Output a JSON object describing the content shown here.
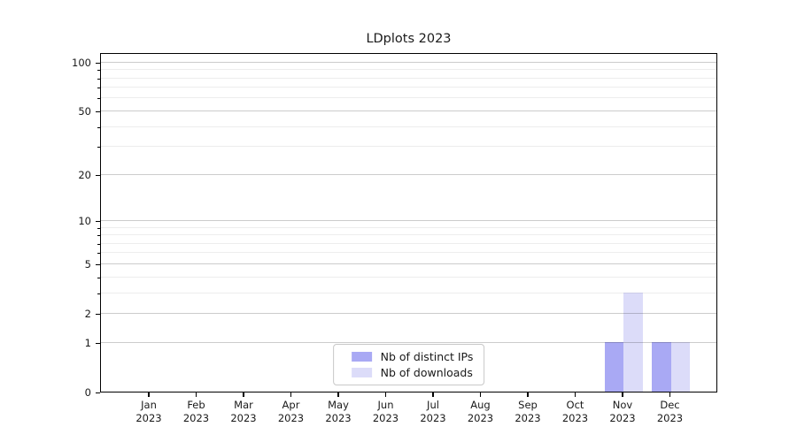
{
  "chart_data": {
    "type": "bar",
    "title": "LDplots 2023",
    "categories": [
      "Jan",
      "Feb",
      "Mar",
      "Apr",
      "May",
      "Jun",
      "Jul",
      "Aug",
      "Sep",
      "Oct",
      "Nov",
      "Dec"
    ],
    "x_tick_year": "2023",
    "series": [
      {
        "name": "Nb of distinct IPs",
        "color": "#a9a9f4",
        "values": [
          0,
          0,
          0,
          0,
          0,
          0,
          0,
          0,
          0,
          0,
          1,
          1
        ]
      },
      {
        "name": "Nb of downloads",
        "color": "#dcdcf9",
        "values": [
          0,
          0,
          0,
          0,
          0,
          0,
          0,
          0,
          0,
          0,
          3,
          1
        ]
      }
    ],
    "xlabel": "",
    "ylabel": "",
    "y_axis": {
      "ticks": [
        0,
        1,
        2,
        5,
        10,
        20,
        50,
        100
      ],
      "minor_ticks": [
        3,
        4,
        6,
        7,
        8,
        9,
        30,
        40,
        60,
        70,
        80,
        90
      ],
      "scale": "log10(1+x)",
      "ylim": [
        0,
        115
      ]
    },
    "grid": true,
    "legend": {
      "position": "lower center",
      "entries": [
        "Nb of distinct IPs",
        "Nb of downloads"
      ]
    }
  },
  "colors": {
    "bar_distinct_ips": "#a9a9f4",
    "bar_downloads": "#dcdcf9",
    "grid_major": "rgba(0,0,0,0.20)",
    "grid_minor": "rgba(0,0,0,0.07)",
    "spine": "#000000",
    "text": "#1a1a1a",
    "legend_border": "#c8c8c8",
    "background": "#ffffff"
  }
}
